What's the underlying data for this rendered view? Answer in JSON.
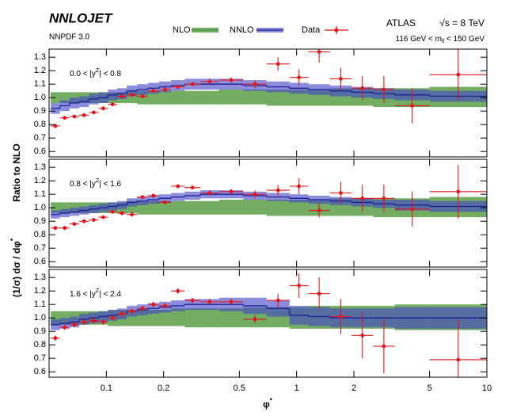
{
  "chart_data": {
    "type": "ratio",
    "title": "NNLOJET",
    "subtitle": "NNPDF 3.0",
    "experiment": "ATLAS",
    "energy": "√s = 8 TeV",
    "mass_range": {
      "pre": "116 GeV < m",
      "sub": "ll",
      "post": " < 150 GeV"
    },
    "ylabel_top": "Ratio to NLO",
    "ylabel_bottom": {
      "pre": "(1/σ) dσ / dφ",
      "sup": "*"
    },
    "xlabel": {
      "pre": "φ",
      "sup": "*"
    },
    "x_log": true,
    "xlim": [
      0.05,
      10
    ],
    "xticks": [
      0.1,
      0.2,
      0.5,
      1,
      2,
      5,
      10
    ],
    "ylim": [
      0.56,
      1.36
    ],
    "yticks": [
      0.6,
      0.7,
      0.8,
      0.9,
      {
        "value": 1,
        "label": "1.0"
      },
      1.1,
      1.2,
      1.3
    ],
    "bins": [
      0.051,
      0.057,
      0.064,
      0.072,
      0.081,
      0.091,
      0.102,
      0.114,
      0.128,
      0.145,
      0.165,
      0.189,
      0.219,
      0.258,
      0.312,
      0.391,
      0.524,
      0.695,
      0.918,
      1.153,
      1.496,
      1.947,
      2.522,
      3.277,
      5.0,
      10.0
    ],
    "series": [
      {
        "name": "NLO",
        "color": "#3d8a3a",
        "band_color": "#72ad62"
      },
      {
        "name": "NNLO",
        "color": "#1e1e96",
        "band_color": "rgba(70,70,200,0.62)"
      },
      {
        "name": "Data",
        "color": "#e3161b"
      }
    ],
    "panels": [
      {
        "label": {
          "pre": "0.0 < |y",
          "sup": "Z",
          "post": "| < 0.8"
        },
        "nlo_low": [
          0.96,
          0.96,
          0.96,
          0.96,
          0.96,
          0.96,
          0.96,
          0.96,
          0.96,
          0.95,
          0.95,
          0.95,
          0.95,
          0.95,
          0.95,
          0.95,
          0.95,
          0.94,
          0.94,
          0.94,
          0.94,
          0.94,
          0.93,
          0.93,
          0.93
        ],
        "nlo_high": [
          1.04,
          1.04,
          1.04,
          1.04,
          1.04,
          1.04,
          1.04,
          1.04,
          1.05,
          1.05,
          1.05,
          1.05,
          1.05,
          1.05,
          1.05,
          1.06,
          1.06,
          1.06,
          1.06,
          1.06,
          1.07,
          1.07,
          1.07,
          1.07,
          1.08
        ],
        "nnlo": [
          0.92,
          0.94,
          0.96,
          0.97,
          0.99,
          1.0,
          1.02,
          1.03,
          1.05,
          1.06,
          1.07,
          1.08,
          1.09,
          1.1,
          1.1,
          1.1,
          1.09,
          1.08,
          1.07,
          1.06,
          1.05,
          1.04,
          1.03,
          1.02,
          1.01
        ],
        "nnlo_low": [
          0.88,
          0.9,
          0.92,
          0.93,
          0.95,
          0.96,
          0.98,
          0.99,
          1.01,
          1.02,
          1.03,
          1.04,
          1.05,
          1.06,
          1.06,
          1.06,
          1.05,
          1.04,
          1.03,
          1.02,
          1.01,
          1.0,
          0.99,
          0.98,
          0.97
        ],
        "nnlo_high": [
          0.96,
          0.98,
          1.0,
          1.01,
          1.03,
          1.04,
          1.06,
          1.07,
          1.09,
          1.1,
          1.11,
          1.12,
          1.13,
          1.14,
          1.14,
          1.14,
          1.13,
          1.12,
          1.11,
          1.1,
          1.09,
          1.08,
          1.07,
          1.06,
          1.05
        ],
        "data": [
          0.79,
          0.85,
          0.86,
          0.87,
          0.89,
          0.92,
          0.95,
          1.01,
          1.02,
          1.01,
          1.05,
          1.06,
          1.08,
          1.1,
          1.12,
          1.13,
          1.1,
          1.25,
          1.15,
          1.34,
          1.14,
          1.07,
          1.06,
          0.94,
          1.17
        ],
        "data_err": [
          0.01,
          0.01,
          0.01,
          0.01,
          0.01,
          0.01,
          0.01,
          0.01,
          0.01,
          0.01,
          0.01,
          0.01,
          0.01,
          0.01,
          0.02,
          0.02,
          0.03,
          0.05,
          0.06,
          0.08,
          0.08,
          0.09,
          0.1,
          0.13,
          0.19
        ]
      },
      {
        "label": {
          "pre": "0.8 < |y",
          "sup": "Z",
          "post": "| < 1.6"
        },
        "nlo_low": [
          0.96,
          0.96,
          0.96,
          0.96,
          0.96,
          0.96,
          0.96,
          0.96,
          0.96,
          0.95,
          0.95,
          0.95,
          0.95,
          0.95,
          0.95,
          0.95,
          0.95,
          0.94,
          0.94,
          0.94,
          0.94,
          0.94,
          0.93,
          0.93,
          0.93
        ],
        "nlo_high": [
          1.04,
          1.04,
          1.04,
          1.04,
          1.04,
          1.04,
          1.04,
          1.04,
          1.05,
          1.05,
          1.05,
          1.05,
          1.05,
          1.05,
          1.05,
          1.06,
          1.06,
          1.06,
          1.06,
          1.06,
          1.07,
          1.07,
          1.07,
          1.07,
          1.08
        ],
        "nnlo": [
          0.95,
          0.96,
          0.97,
          0.98,
          0.99,
          1.0,
          1.01,
          1.02,
          1.04,
          1.05,
          1.06,
          1.07,
          1.08,
          1.09,
          1.1,
          1.1,
          1.09,
          1.08,
          1.07,
          1.06,
          1.05,
          1.04,
          1.03,
          1.02,
          1.01
        ],
        "nnlo_low": [
          0.92,
          0.93,
          0.94,
          0.95,
          0.96,
          0.97,
          0.98,
          0.99,
          1.01,
          1.02,
          1.03,
          1.04,
          1.05,
          1.06,
          1.07,
          1.07,
          1.06,
          1.05,
          1.04,
          1.03,
          1.02,
          1.01,
          1.0,
          0.98,
          0.97
        ],
        "nnlo_high": [
          0.98,
          0.99,
          1.0,
          1.01,
          1.02,
          1.03,
          1.04,
          1.05,
          1.07,
          1.08,
          1.09,
          1.1,
          1.11,
          1.12,
          1.13,
          1.13,
          1.12,
          1.11,
          1.1,
          1.09,
          1.08,
          1.07,
          1.06,
          1.06,
          1.05
        ],
        "data": [
          0.85,
          0.85,
          0.88,
          0.9,
          0.91,
          0.93,
          0.97,
          0.96,
          0.95,
          1.08,
          1.09,
          1.04,
          1.16,
          1.15,
          1.11,
          1.12,
          1.1,
          1.13,
          1.16,
          0.98,
          1.11,
          1.07,
          1.07,
          0.99,
          1.12
        ],
        "data_err": [
          0.01,
          0.01,
          0.01,
          0.01,
          0.01,
          0.01,
          0.01,
          0.01,
          0.01,
          0.01,
          0.01,
          0.01,
          0.01,
          0.01,
          0.02,
          0.02,
          0.03,
          0.04,
          0.06,
          0.05,
          0.08,
          0.1,
          0.1,
          0.13,
          0.2
        ]
      },
      {
        "label": {
          "pre": "1.6 < |y",
          "sup": "Z",
          "post": "| < 2.4"
        },
        "nlo_low": [
          0.95,
          0.95,
          0.95,
          0.95,
          0.95,
          0.95,
          0.94,
          0.94,
          0.94,
          0.94,
          0.94,
          0.94,
          0.94,
          0.93,
          0.93,
          0.93,
          0.93,
          0.93,
          0.92,
          0.92,
          0.92,
          0.92,
          0.92,
          0.91,
          0.91
        ],
        "nlo_high": [
          1.05,
          1.05,
          1.05,
          1.05,
          1.05,
          1.05,
          1.06,
          1.06,
          1.06,
          1.06,
          1.06,
          1.06,
          1.07,
          1.07,
          1.07,
          1.07,
          1.08,
          1.08,
          1.08,
          1.09,
          1.09,
          1.09,
          1.09,
          1.1,
          1.1
        ],
        "nnlo": [
          0.95,
          0.96,
          0.97,
          0.99,
          1.0,
          1.01,
          1.02,
          1.03,
          1.05,
          1.06,
          1.07,
          1.08,
          1.09,
          1.1,
          1.1,
          1.1,
          1.09,
          1.07,
          1.02,
          1.01,
          1.0,
          1.0,
          1.0,
          1.0,
          1.0
        ],
        "nnlo_low": [
          0.91,
          0.92,
          0.93,
          0.95,
          0.96,
          0.97,
          0.98,
          0.99,
          1.01,
          1.02,
          1.03,
          1.04,
          1.05,
          1.06,
          1.06,
          1.05,
          1.03,
          1.01,
          0.95,
          0.94,
          0.93,
          0.93,
          0.93,
          0.92,
          0.92
        ],
        "nnlo_high": [
          0.99,
          1.0,
          1.01,
          1.03,
          1.04,
          1.05,
          1.06,
          1.07,
          1.09,
          1.1,
          1.11,
          1.12,
          1.13,
          1.14,
          1.14,
          1.15,
          1.15,
          1.13,
          1.09,
          1.08,
          1.07,
          1.07,
          1.07,
          1.08,
          1.08
        ],
        "data": [
          0.85,
          0.93,
          0.95,
          0.97,
          0.98,
          0.97,
          1.0,
          1.03,
          1.05,
          1.07,
          1.1,
          1.09,
          1.2,
          1.13,
          1.12,
          1.12,
          0.99,
          1.13,
          1.24,
          1.18,
          1.01,
          0.87,
          0.79,
          null,
          0.69
        ],
        "data_err": [
          0.02,
          0.02,
          0.02,
          0.02,
          0.02,
          0.02,
          0.02,
          0.02,
          0.02,
          0.02,
          0.02,
          0.02,
          0.02,
          0.02,
          0.02,
          0.02,
          0.03,
          0.05,
          0.09,
          0.12,
          0.13,
          0.17,
          0.2,
          null,
          0.3
        ]
      }
    ]
  }
}
